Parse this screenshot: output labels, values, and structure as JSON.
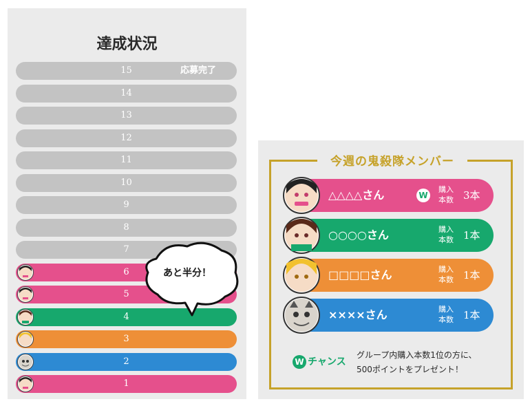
{
  "left": {
    "title": "達成状況",
    "rows": [
      {
        "num": "15",
        "status": "応募完了",
        "color": "#c3c3c3"
      },
      {
        "num": "14",
        "color": "#c3c3c3"
      },
      {
        "num": "13",
        "color": "#c3c3c3"
      },
      {
        "num": "12",
        "color": "#c3c3c3"
      },
      {
        "num": "11",
        "color": "#c3c3c3"
      },
      {
        "num": "10",
        "color": "#c3c3c3"
      },
      {
        "num": "9",
        "color": "#c3c3c3"
      },
      {
        "num": "8",
        "color": "#c3c3c3"
      },
      {
        "num": "7",
        "color": "#c3c3c3"
      },
      {
        "num": "6",
        "color": "#e5508c",
        "avatar": "character-avatar-icon"
      },
      {
        "num": "5",
        "color": "#e5508c",
        "avatar": "character-avatar-icon"
      },
      {
        "num": "4",
        "color": "#17a86d",
        "avatar": "character-avatar-icon"
      },
      {
        "num": "3",
        "color": "#ee8f37",
        "avatar": "character-avatar-icon"
      },
      {
        "num": "2",
        "color": "#2d8ad3",
        "avatar": "character-avatar-icon"
      },
      {
        "num": "1",
        "color": "#e5508c",
        "avatar": "character-avatar-icon"
      }
    ],
    "bubble": "あと半分！"
  },
  "right": {
    "title": "今週の鬼殺隊メンバー",
    "members": [
      {
        "name": "△△△△さん",
        "w_badge": "W",
        "label_line1": "購入",
        "label_line2": "本数",
        "count": "3本",
        "color": "#e5508c"
      },
      {
        "name": "○○○○さん",
        "label_line1": "購入",
        "label_line2": "本数",
        "count": "1本",
        "color": "#17a86d"
      },
      {
        "name": "□□□□さん",
        "label_line1": "購入",
        "label_line2": "本数",
        "count": "1本",
        "color": "#ee8f37"
      },
      {
        "name": "××××さん",
        "label_line1": "購入",
        "label_line2": "本数",
        "count": "1本",
        "color": "#2d8ad3"
      }
    ],
    "chance": {
      "badge": "W",
      "label": "チャンス",
      "line1": "グループ内購入本数1位の方に、",
      "line2": "500ポイントをプレゼント！"
    }
  },
  "colors": {
    "pink": "#e5508c",
    "green": "#17a86d",
    "orange": "#ee8f37",
    "blue": "#2d8ad3",
    "gray": "#c3c3c3",
    "gold": "#c6a22a"
  }
}
